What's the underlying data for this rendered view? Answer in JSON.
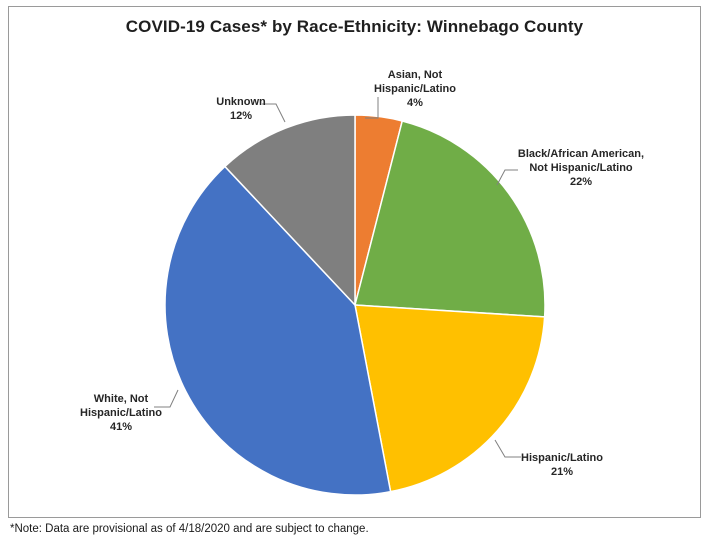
{
  "chart_data": {
    "type": "pie",
    "title": "COVID-19 Cases* by Race-Ethnicity: Winnebago County",
    "slices": [
      {
        "label": "Asian, Not Hispanic/Latino",
        "label_lines": [
          "Asian, Not",
          "Hispanic/Latino"
        ],
        "value": 4,
        "value_label": "4%",
        "color": "#ED7D31"
      },
      {
        "label": "Black/African American, Not Hispanic/Latino",
        "label_lines": [
          "Black/African American,",
          "Not Hispanic/Latino"
        ],
        "value": 22,
        "value_label": "22%",
        "color": "#70AD47"
      },
      {
        "label": "Hispanic/Latino",
        "label_lines": [
          "Hispanic/Latino"
        ],
        "value": 21,
        "value_label": "21%",
        "color": "#FFC000"
      },
      {
        "label": "White, Not Hispanic/Latino",
        "label_lines": [
          "White, Not",
          "Hispanic/Latino"
        ],
        "value": 41,
        "value_label": "41%",
        "color": "#4472C4"
      },
      {
        "label": "Unknown",
        "label_lines": [
          "Unknown"
        ],
        "value": 12,
        "value_label": "12%",
        "color": "#7F7F7F"
      }
    ],
    "legend": "none",
    "data_labels": "outside with leader lines"
  },
  "footnote": "*Note: Data are provisional as of 4/18/2020 and are subject to change."
}
